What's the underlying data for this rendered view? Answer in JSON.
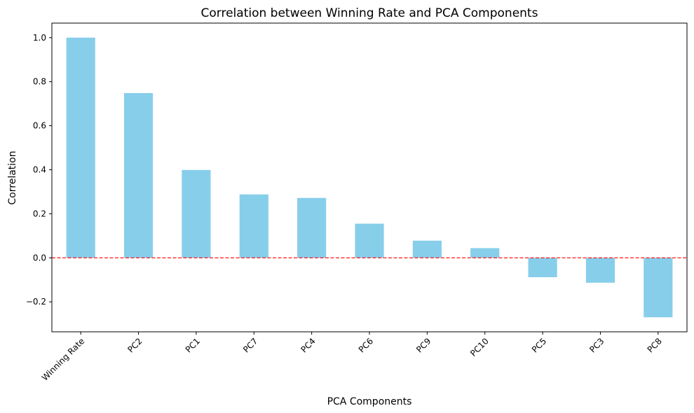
{
  "chart_data": {
    "type": "bar",
    "title": "Correlation between Winning Rate and PCA Components",
    "xlabel": "PCA Components",
    "ylabel": "Correlation",
    "categories": [
      "Winning Rate",
      "PC2",
      "PC1",
      "PC7",
      "PC4",
      "PC6",
      "PC9",
      "PC10",
      "PC5",
      "PC3",
      "PC8"
    ],
    "values": [
      1.0,
      0.748,
      0.399,
      0.288,
      0.272,
      0.155,
      0.078,
      0.044,
      -0.088,
      -0.113,
      -0.27
    ],
    "ylim": [
      -0.336,
      1.066
    ],
    "yticks": [
      -0.2,
      0.0,
      0.2,
      0.4,
      0.6,
      0.8,
      1.0
    ],
    "ytick_labels": [
      "−0.2",
      "0.0",
      "0.2",
      "0.4",
      "0.6",
      "0.8",
      "1.0"
    ],
    "grid": false,
    "reference_line": {
      "y": 0,
      "style": "dashed",
      "color": "#ff0000"
    },
    "bar_color": "#87ceeb"
  }
}
